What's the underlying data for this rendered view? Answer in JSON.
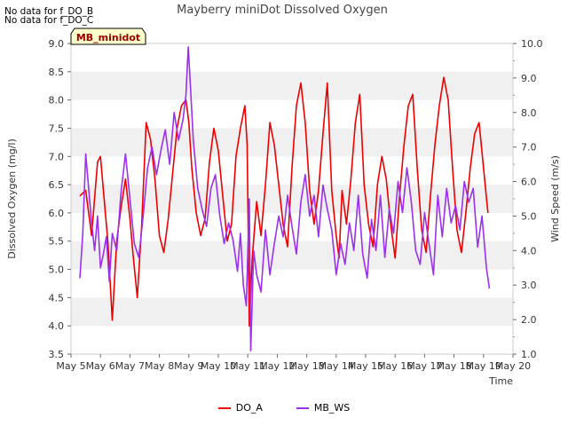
{
  "notes": [
    "No data for f_DO_B",
    "No data for f_DO_C"
  ],
  "colors": {
    "do_a": "#ee0000",
    "mb_ws": "#9b30ee",
    "band": "#f0f0f0",
    "tag_bg": "#ffffcc",
    "tag_border": "#000000",
    "tag_text": "#990000"
  },
  "chart_data": {
    "type": "line",
    "title": "Mayberry miniDot Dissolved Oxygen",
    "xlabel": "Time",
    "ylabel": "Dissolved Oxygen (mg/l)",
    "y2label": "Wind Speed (m/s)",
    "station_tag": "MB_minidot",
    "xlim": [
      5,
      20
    ],
    "x_ticks": [
      "May 5",
      "May 6",
      "May 7",
      "May 8",
      "May 9",
      "May 10",
      "May 11",
      "May 12",
      "May 13",
      "May 14",
      "May 15",
      "May 16",
      "May 17",
      "May 18",
      "May 19",
      "May 20"
    ],
    "ylim": [
      3.5,
      9.0
    ],
    "y_ticks": [
      "3.5",
      "4.0",
      "4.5",
      "5.0",
      "5.5",
      "6.0",
      "6.5",
      "7.0",
      "7.5",
      "8.0",
      "8.5",
      "9.0"
    ],
    "y2lim": [
      1.0,
      10.0
    ],
    "y2_ticks": [
      "1.0",
      "2.0",
      "3.0",
      "4.0",
      "5.0",
      "6.0",
      "7.0",
      "8.0",
      "9.0",
      "10.0"
    ],
    "legend": {
      "position": "bottom-center"
    },
    "grid": "alternating horizontal bands",
    "series": [
      {
        "name": "DO_A",
        "axis": "left",
        "x": [
          5.3,
          5.5,
          5.7,
          5.9,
          6.0,
          6.1,
          6.25,
          6.4,
          6.55,
          6.7,
          6.85,
          7.0,
          7.1,
          7.25,
          7.4,
          7.55,
          7.7,
          7.85,
          8.0,
          8.15,
          8.3,
          8.45,
          8.6,
          8.75,
          8.9,
          9.0,
          9.1,
          9.25,
          9.4,
          9.55,
          9.7,
          9.85,
          10.0,
          10.15,
          10.3,
          10.45,
          10.6,
          10.75,
          10.9,
          10.98,
          11.05,
          11.15,
          11.3,
          11.45,
          11.6,
          11.75,
          11.9,
          12.05,
          12.2,
          12.35,
          12.5,
          12.65,
          12.8,
          12.95,
          13.1,
          13.25,
          13.4,
          13.55,
          13.7,
          13.85,
          14.0,
          14.1,
          14.2,
          14.35,
          14.5,
          14.65,
          14.8,
          14.95,
          15.1,
          15.25,
          15.4,
          15.55,
          15.7,
          15.85,
          16.0,
          16.15,
          16.3,
          16.45,
          16.6,
          16.75,
          16.9,
          17.05,
          17.2,
          17.35,
          17.5,
          17.65,
          17.8,
          17.95,
          18.1,
          18.25,
          18.4,
          18.55,
          18.7,
          18.85,
          19.0,
          19.15
        ],
        "values": [
          6.3,
          6.4,
          5.6,
          6.9,
          7.0,
          6.4,
          5.5,
          4.1,
          5.5,
          6.1,
          6.6,
          5.9,
          5.3,
          4.5,
          5.8,
          7.6,
          7.3,
          6.6,
          5.6,
          5.3,
          5.9,
          6.7,
          7.5,
          7.9,
          8.0,
          7.6,
          6.8,
          6.0,
          5.6,
          5.9,
          6.9,
          7.5,
          7.1,
          6.3,
          5.5,
          5.8,
          7.0,
          7.5,
          7.9,
          7.2,
          4.0,
          5.2,
          6.2,
          5.6,
          6.5,
          7.6,
          7.2,
          6.5,
          5.8,
          5.4,
          6.8,
          7.9,
          8.3,
          7.6,
          6.4,
          5.8,
          6.4,
          7.4,
          8.3,
          6.4,
          5.6,
          5.2,
          6.4,
          5.8,
          6.6,
          7.6,
          8.1,
          6.5,
          5.8,
          5.4,
          6.5,
          7.0,
          6.6,
          5.8,
          5.2,
          6.3,
          7.2,
          7.9,
          8.1,
          6.8,
          5.7,
          5.3,
          6.3,
          7.2,
          7.9,
          8.4,
          8.0,
          6.8,
          5.7,
          5.3,
          6.0,
          6.8,
          7.4,
          7.6,
          6.8,
          6.0
        ]
      },
      {
        "name": "MB_WS",
        "axis": "right",
        "x": [
          5.3,
          5.4,
          5.5,
          5.6,
          5.7,
          5.8,
          5.9,
          6.0,
          6.1,
          6.2,
          6.3,
          6.4,
          6.55,
          6.7,
          6.85,
          7.0,
          7.15,
          7.3,
          7.45,
          7.6,
          7.75,
          7.9,
          8.05,
          8.2,
          8.35,
          8.5,
          8.65,
          8.8,
          8.9,
          8.98,
          9.05,
          9.15,
          9.3,
          9.45,
          9.6,
          9.75,
          9.9,
          10.05,
          10.2,
          10.35,
          10.5,
          10.65,
          10.75,
          10.85,
          10.95,
          11.05,
          11.1,
          11.2,
          11.3,
          11.45,
          11.6,
          11.75,
          11.9,
          12.05,
          12.2,
          12.35,
          12.5,
          12.65,
          12.8,
          12.95,
          13.1,
          13.25,
          13.4,
          13.55,
          13.7,
          13.85,
          14.0,
          14.15,
          14.3,
          14.45,
          14.6,
          14.75,
          14.9,
          15.05,
          15.2,
          15.35,
          15.5,
          15.65,
          15.8,
          15.95,
          16.1,
          16.25,
          16.4,
          16.55,
          16.7,
          16.85,
          17.0,
          17.15,
          17.3,
          17.45,
          17.6,
          17.75,
          17.9,
          18.05,
          18.2,
          18.35,
          18.5,
          18.65,
          18.8,
          18.95,
          19.1,
          19.2
        ],
        "values": [
          3.2,
          4.5,
          6.8,
          5.8,
          4.8,
          4.0,
          5.0,
          3.5,
          3.9,
          4.4,
          3.1,
          4.5,
          4.0,
          5.7,
          6.8,
          5.5,
          4.2,
          3.8,
          5.0,
          6.4,
          7.0,
          6.2,
          6.9,
          7.5,
          6.5,
          8.0,
          7.2,
          7.8,
          8.5,
          9.9,
          8.8,
          7.2,
          5.8,
          5.2,
          4.7,
          5.8,
          6.2,
          5.0,
          4.2,
          4.8,
          4.3,
          3.4,
          4.5,
          3.0,
          2.4,
          5.5,
          1.1,
          4.0,
          3.3,
          2.8,
          4.6,
          3.3,
          4.2,
          5.0,
          4.4,
          5.6,
          4.7,
          3.9,
          5.4,
          6.2,
          5.0,
          5.6,
          4.4,
          5.9,
          5.2,
          4.6,
          3.3,
          4.2,
          3.6,
          4.8,
          4.0,
          5.6,
          3.9,
          3.2,
          4.9,
          4.0,
          5.6,
          3.8,
          5.2,
          4.5,
          6.0,
          5.1,
          6.4,
          5.4,
          4.0,
          3.6,
          5.1,
          4.2,
          3.3,
          5.6,
          4.4,
          5.8,
          4.8,
          5.3,
          4.6,
          6.0,
          5.4,
          5.8,
          4.1,
          5.0,
          3.5,
          2.9
        ]
      }
    ]
  }
}
